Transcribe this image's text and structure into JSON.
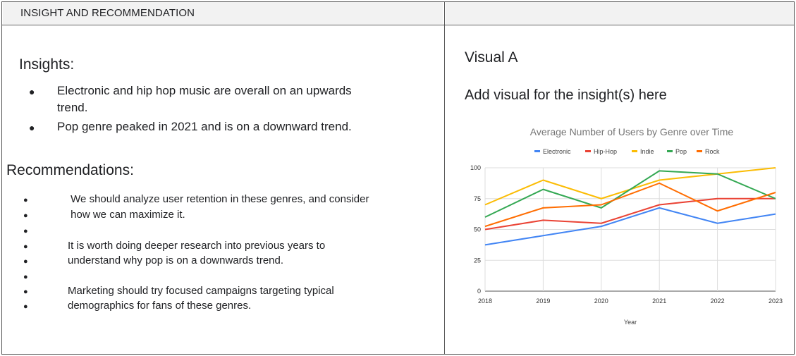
{
  "header": {
    "title": "INSIGHT AND RECOMMENDATION",
    "right_title": ""
  },
  "insights": {
    "heading": "Insights:",
    "items": [
      {
        "line1": "Electronic and hip hop music are overall on an upwards",
        "line2": "trend."
      },
      {
        "line1": "Pop genre peaked in 2021 and is on a downward trend.",
        "line2": ""
      }
    ]
  },
  "recommendations": {
    "heading": "Recommendations:",
    "lines": [
      " We should analyze user retention in these genres, and consider",
      " how we can maximize it.",
      "",
      "It is worth doing deeper research into previous years to",
      "understand why pop is on a downwards trend.",
      "",
      "Marketing should try focused campaigns targeting typical",
      "demographics for fans of these genres."
    ]
  },
  "visual": {
    "title": "Visual A",
    "subtitle": "Add visual for the insight(s) here"
  },
  "chart_data": {
    "type": "line",
    "title": "Average Number of Users by Genre over Time",
    "xlabel": "Year",
    "ylabel": "",
    "x": [
      "2018",
      "2019",
      "2020",
      "2021",
      "2022",
      "2023"
    ],
    "ylim": [
      0,
      100
    ],
    "yticks": [
      0,
      25,
      50,
      75,
      100
    ],
    "grid": true,
    "legend_position": "top",
    "series": [
      {
        "name": "Electronic",
        "color": "#4285f4",
        "values": [
          37.5,
          45,
          52.5,
          67.5,
          55,
          62.5
        ]
      },
      {
        "name": "Hip-Hop",
        "color": "#ea4335",
        "values": [
          50,
          57.5,
          55,
          70,
          75,
          75
        ]
      },
      {
        "name": "Indie",
        "color": "#fbbc04",
        "values": [
          70,
          90,
          75,
          90,
          95,
          100
        ]
      },
      {
        "name": "Pop",
        "color": "#34a853",
        "values": [
          60,
          82.5,
          67.5,
          97.5,
          95,
          75
        ]
      },
      {
        "name": "Rock",
        "color": "#ff6d01",
        "values": [
          52.5,
          67.5,
          70,
          87.5,
          65,
          80
        ]
      }
    ]
  }
}
